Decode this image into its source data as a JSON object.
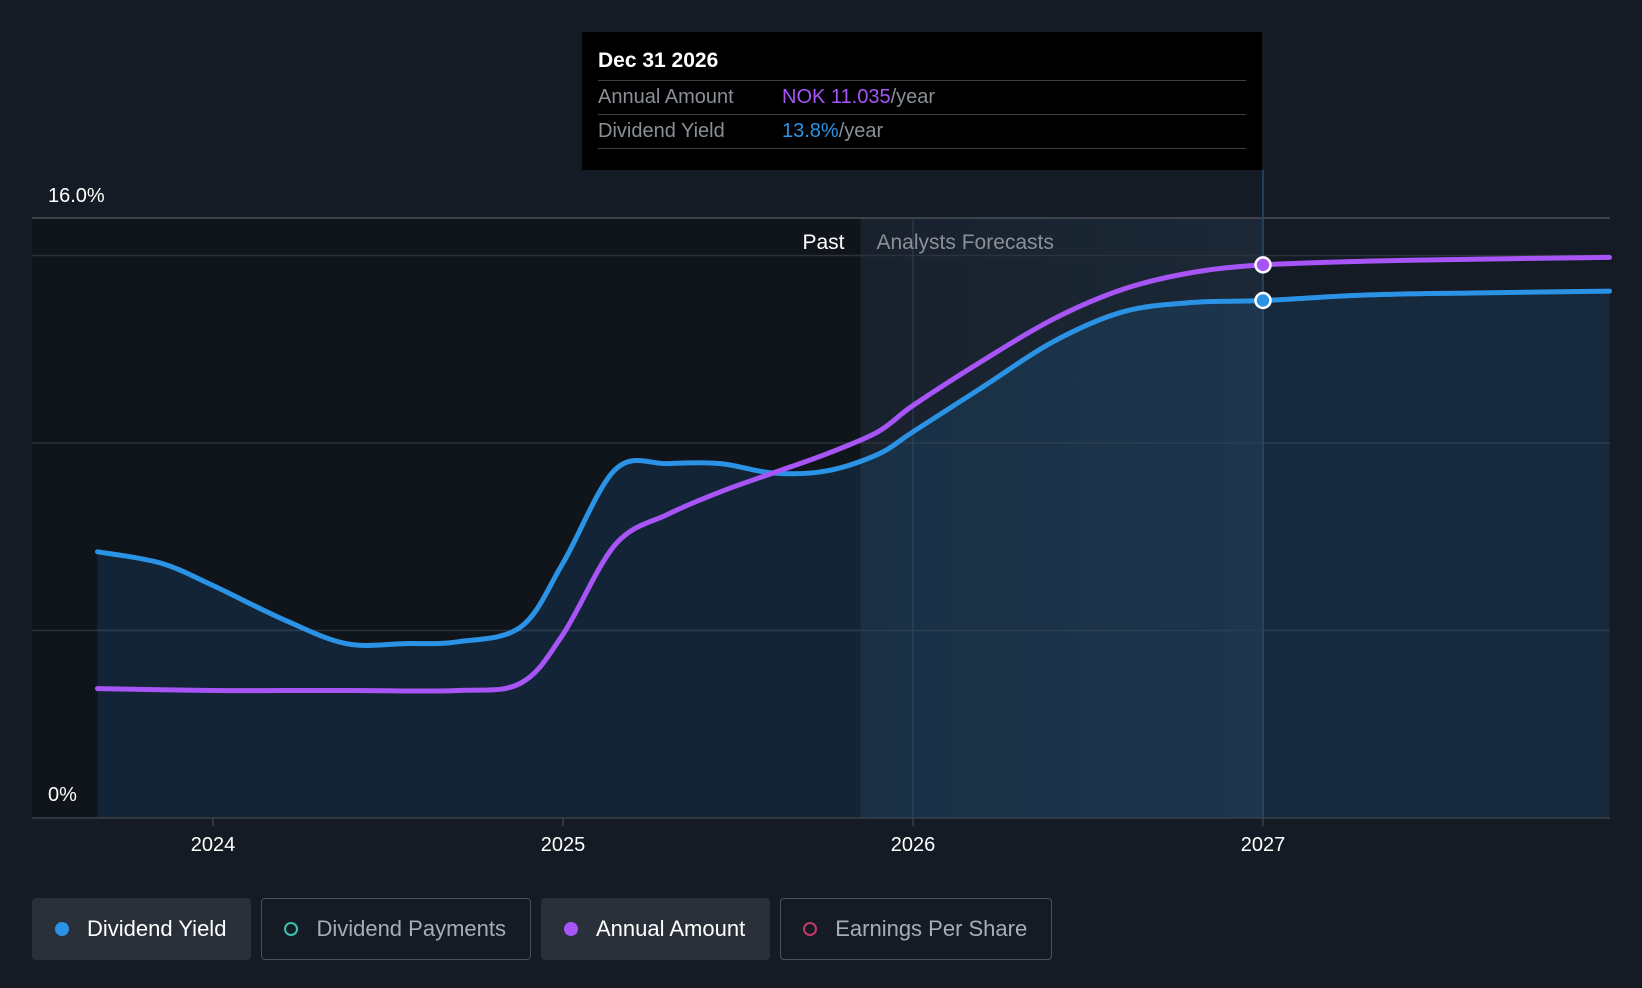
{
  "tooltip": {
    "date": "Dec 31 2026",
    "rows": [
      {
        "label": "Annual Amount",
        "value": "NOK 11.035",
        "unit": "/year"
      },
      {
        "label": "Dividend Yield",
        "value": "13.8%",
        "unit": "/year"
      }
    ]
  },
  "legend": [
    {
      "label": "Dividend Yield",
      "color": "#2a93e6",
      "active": true
    },
    {
      "label": "Dividend Payments",
      "color": "#3dbfb0",
      "active": false
    },
    {
      "label": "Annual Amount",
      "color": "#a855f7",
      "active": true
    },
    {
      "label": "Earnings Per Share",
      "color": "#c0396b",
      "active": false
    }
  ],
  "chart_data": {
    "type": "area",
    "y_axis_labels": [
      "16.0%",
      "0%"
    ],
    "ylim": [
      0,
      16
    ],
    "xlim": [
      2023.5,
      2027.99
    ],
    "x_ticks": [
      {
        "label": "2024",
        "value": 2024
      },
      {
        "label": "2025",
        "value": 2025
      },
      {
        "label": "2026",
        "value": 2026
      },
      {
        "label": "2027",
        "value": 2027
      }
    ],
    "gridlines": [
      0,
      5,
      10,
      15,
      16
    ],
    "past_label": "Past",
    "forecast_label": "Analysts Forecasts",
    "forecast_start": 2025.85,
    "highlight_x": 2027,
    "series": [
      {
        "name": "Dividend Yield",
        "color": "#2a93e6",
        "filled": true,
        "points": [
          [
            2023.67,
            7.1
          ],
          [
            2023.85,
            6.8
          ],
          [
            2024.0,
            6.2
          ],
          [
            2024.2,
            5.3
          ],
          [
            2024.38,
            4.65
          ],
          [
            2024.55,
            4.65
          ],
          [
            2024.7,
            4.7
          ],
          [
            2024.88,
            5.1
          ],
          [
            2025.0,
            6.8
          ],
          [
            2025.15,
            9.3
          ],
          [
            2025.3,
            9.45
          ],
          [
            2025.45,
            9.45
          ],
          [
            2025.6,
            9.2
          ],
          [
            2025.75,
            9.25
          ],
          [
            2025.9,
            9.7
          ],
          [
            2026.0,
            10.3
          ],
          [
            2026.2,
            11.5
          ],
          [
            2026.4,
            12.7
          ],
          [
            2026.6,
            13.5
          ],
          [
            2026.8,
            13.75
          ],
          [
            2027.0,
            13.8
          ],
          [
            2027.3,
            13.95
          ],
          [
            2027.6,
            14.0
          ],
          [
            2027.99,
            14.05
          ]
        ]
      },
      {
        "name": "Annual Amount",
        "color": "#a855f7",
        "filled": false,
        "points": [
          [
            2023.67,
            3.45
          ],
          [
            2024.0,
            3.4
          ],
          [
            2024.2,
            3.4
          ],
          [
            2024.4,
            3.4
          ],
          [
            2024.7,
            3.4
          ],
          [
            2024.88,
            3.6
          ],
          [
            2025.0,
            4.9
          ],
          [
            2025.15,
            7.3
          ],
          [
            2025.3,
            8.1
          ],
          [
            2025.45,
            8.7
          ],
          [
            2025.6,
            9.2
          ],
          [
            2025.75,
            9.7
          ],
          [
            2025.9,
            10.3
          ],
          [
            2026.0,
            11.0
          ],
          [
            2026.2,
            12.2
          ],
          [
            2026.4,
            13.3
          ],
          [
            2026.6,
            14.1
          ],
          [
            2026.8,
            14.55
          ],
          [
            2027.0,
            14.75
          ],
          [
            2027.3,
            14.85
          ],
          [
            2027.6,
            14.9
          ],
          [
            2027.99,
            14.95
          ]
        ]
      }
    ]
  }
}
